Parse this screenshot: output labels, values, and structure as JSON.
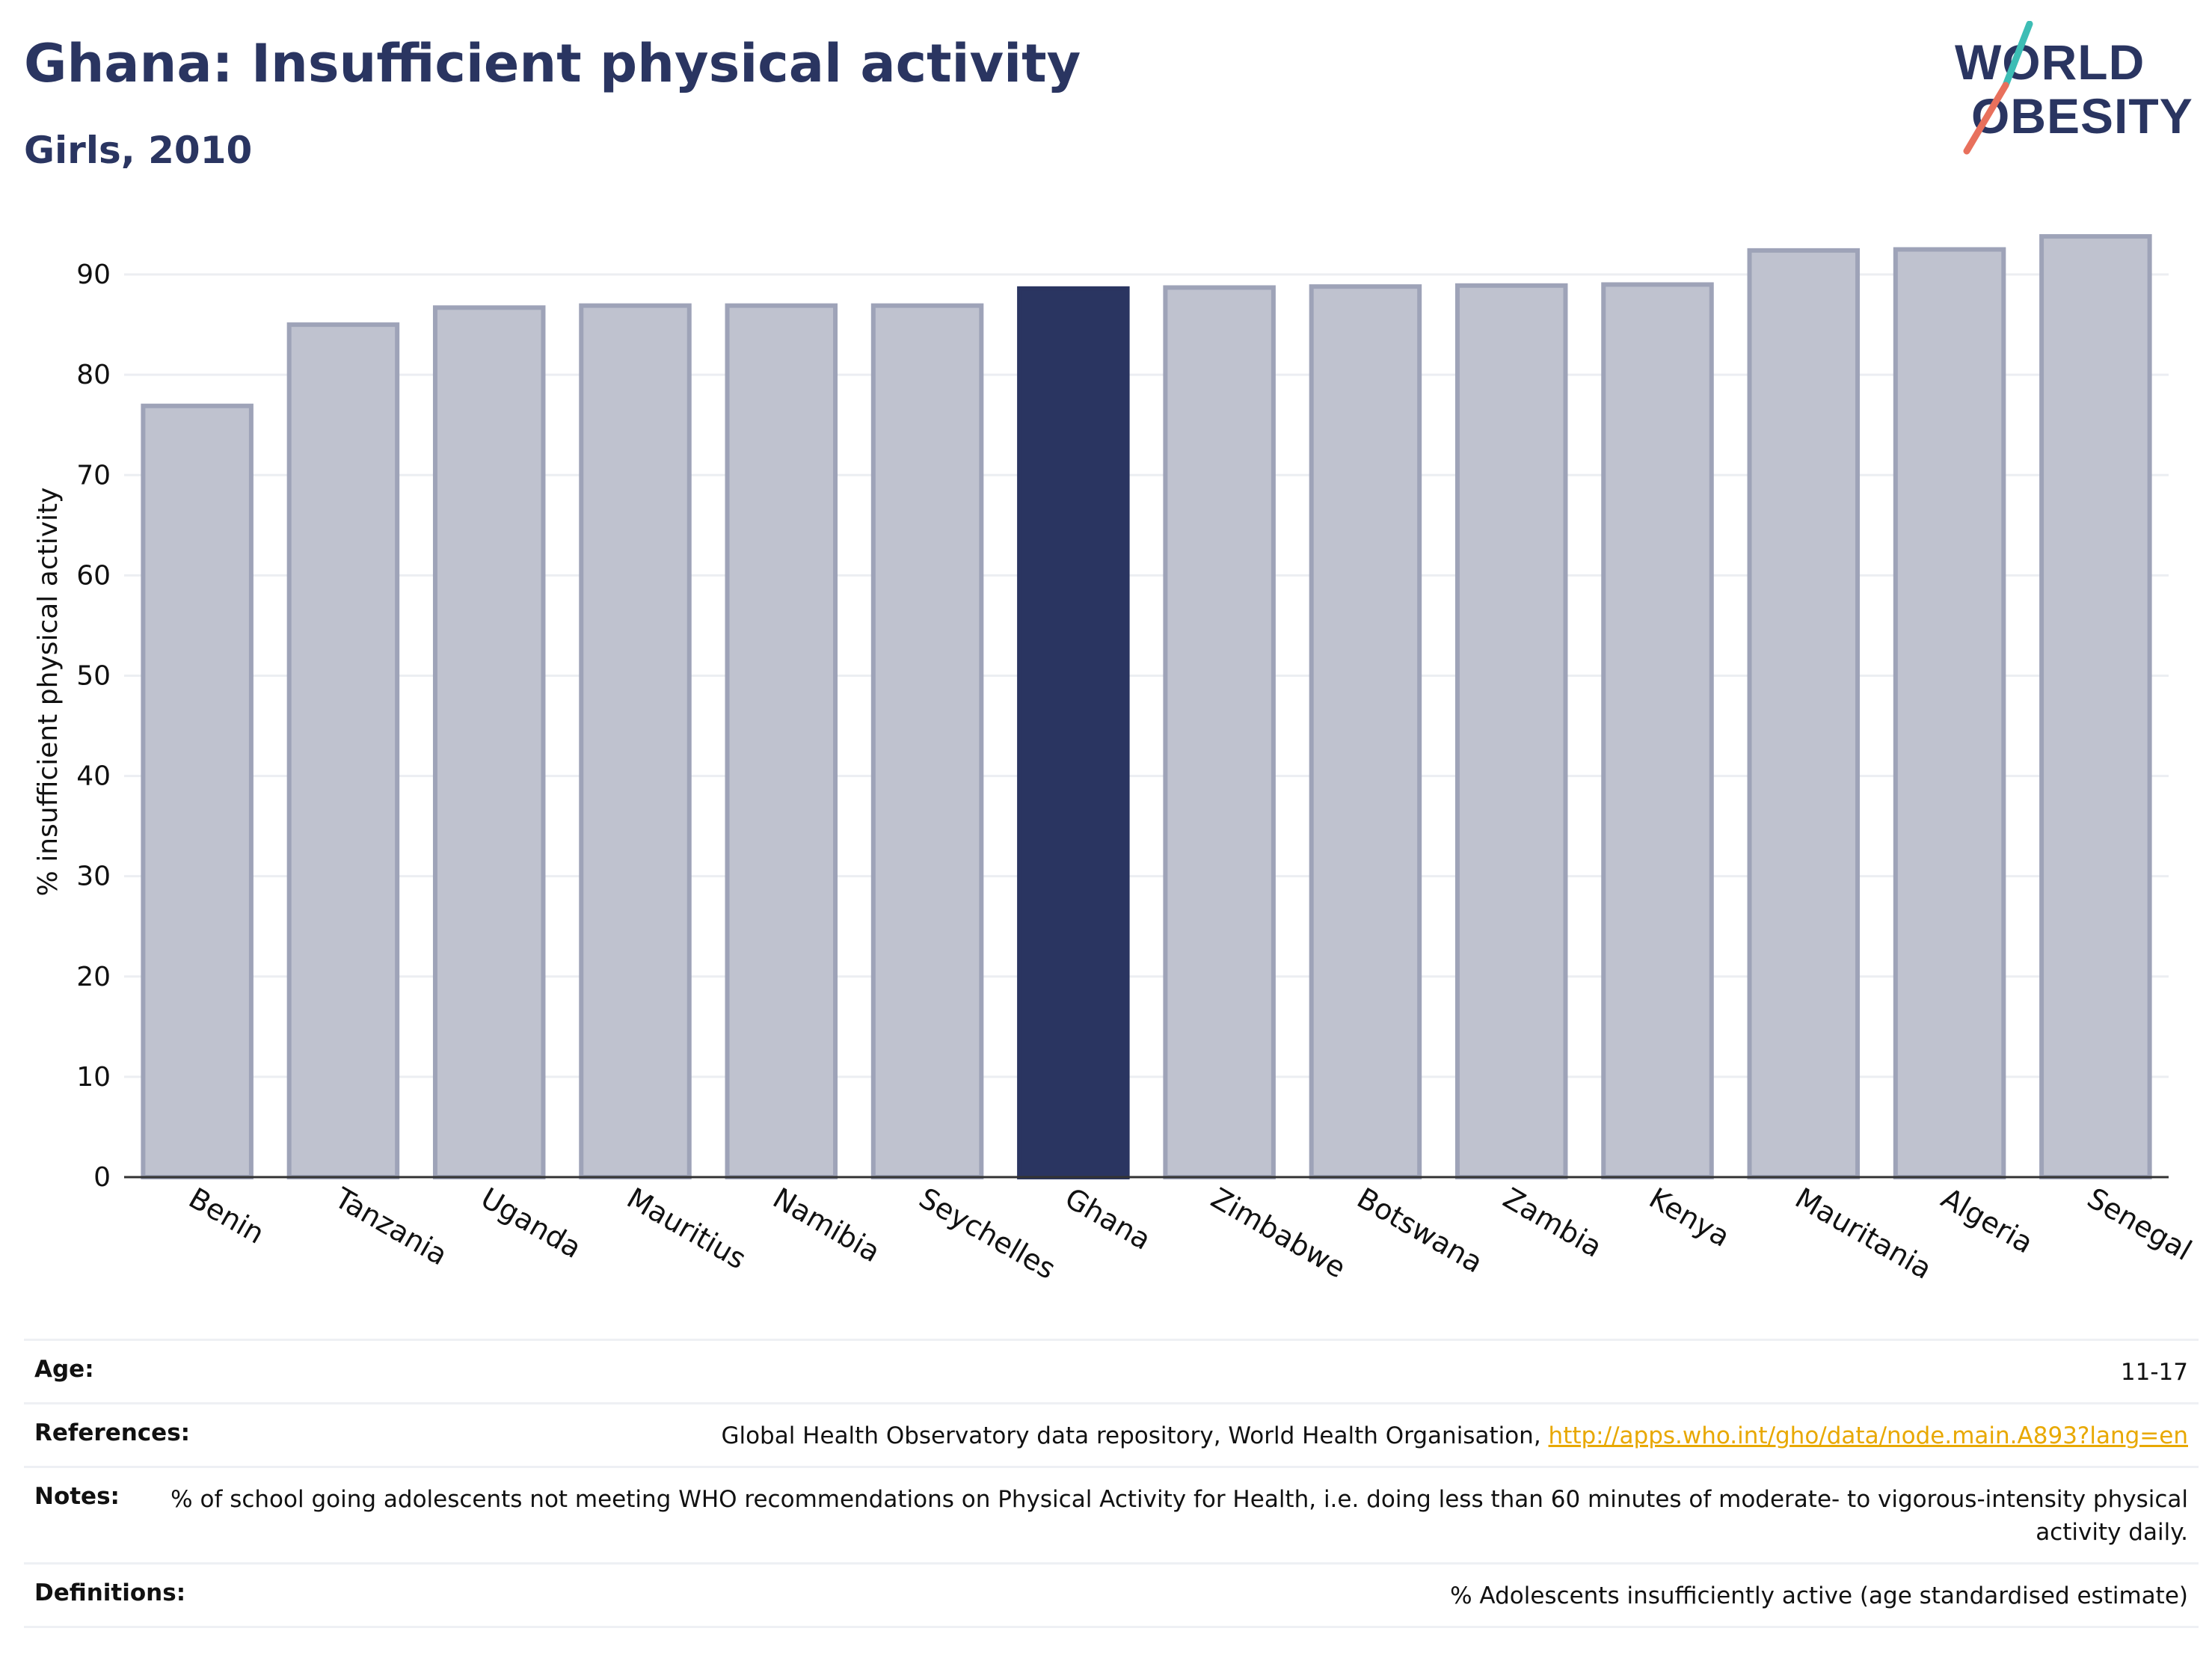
{
  "title": "Ghana: Insufficient physical activity",
  "subtitle": "Girls, 2010",
  "logo": {
    "line1": "WORLD",
    "line2": "OBESITY",
    "slash_colors": [
      "#3dbdb5",
      "#e8705c"
    ]
  },
  "colors": {
    "highlight": "#2a3561",
    "bar_fill": "#bfc2cf",
    "bar_edge": "#9ea3b8",
    "grid": "#eceef2",
    "axis": "#333333"
  },
  "chart_data": {
    "type": "bar",
    "categories": [
      "Benin",
      "Tanzania",
      "Uganda",
      "Mauritius",
      "Namibia",
      "Seychelles",
      "Ghana",
      "Zimbabwe",
      "Botswana",
      "Zambia",
      "Kenya",
      "Mauritania",
      "Algeria",
      "Senegal"
    ],
    "values": [
      76.9,
      85.0,
      86.7,
      86.9,
      86.9,
      86.9,
      88.6,
      88.7,
      88.8,
      88.9,
      89.0,
      92.4,
      92.5,
      93.8
    ],
    "highlight": "Ghana",
    "ylabel": "% insufficient physical activity",
    "ylim": [
      0,
      95
    ],
    "yticks": [
      0,
      10,
      20,
      30,
      40,
      50,
      60,
      70,
      80,
      90
    ],
    "grid": true,
    "legend": "none"
  },
  "info": {
    "age_label": "Age:",
    "age_value": "11-17",
    "references_label": "References:",
    "references_text": "Global Health Observatory data repository, World Health Organisation, ",
    "references_link": "http://apps.who.int/gho/data/node.main.A893?lang=en",
    "notes_label": "Notes:",
    "notes_value": "% of school going adolescents not meeting WHO recommendations on Physical Activity for Health, i.e. doing less than 60 minutes of moderate- to vigorous-intensity physical activity daily.",
    "definitions_label": "Definitions:",
    "definitions_value": "% Adolescents insufficiently active (age standardised estimate)"
  }
}
